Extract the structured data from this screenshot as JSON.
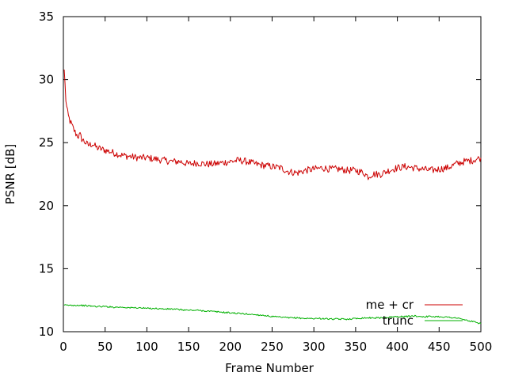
{
  "chart_data": {
    "type": "line",
    "title": "",
    "xlabel": "Frame Number",
    "ylabel": "PSNR [dB]",
    "xlim": [
      0,
      500
    ],
    "ylim": [
      10,
      35
    ],
    "xticks": [
      0,
      50,
      100,
      150,
      200,
      250,
      300,
      350,
      400,
      450,
      500
    ],
    "yticks": [
      10,
      15,
      20,
      25,
      30,
      35
    ],
    "grid": false,
    "legend_position": "bottom-right",
    "series": [
      {
        "name": "me + cr",
        "color": "#cc0000",
        "x": [
          1,
          2,
          3,
          4,
          5,
          6,
          8,
          10,
          12,
          15,
          18,
          20,
          22,
          25,
          28,
          30,
          35,
          40,
          45,
          50,
          55,
          60,
          70,
          80,
          90,
          100,
          110,
          120,
          130,
          140,
          150,
          160,
          170,
          180,
          190,
          200,
          210,
          220,
          230,
          240,
          250,
          260,
          270,
          280,
          290,
          300,
          310,
          320,
          330,
          340,
          350,
          360,
          365,
          370,
          380,
          390,
          400,
          410,
          420,
          430,
          440,
          450,
          460,
          470,
          480,
          490,
          500
        ],
        "y": [
          30.8,
          29.6,
          28.4,
          27.8,
          27.4,
          27.1,
          26.7,
          26.4,
          26.1,
          25.7,
          25.5,
          25.6,
          25.3,
          25.1,
          24.9,
          24.8,
          24.9,
          24.6,
          24.5,
          24.4,
          24.3,
          24.2,
          24.0,
          23.9,
          23.8,
          23.8,
          23.7,
          23.6,
          23.5,
          23.5,
          23.3,
          23.4,
          23.3,
          23.3,
          23.4,
          23.5,
          23.6,
          23.5,
          23.3,
          23.2,
          23.1,
          23.0,
          22.7,
          22.6,
          22.8,
          22.9,
          23.0,
          22.9,
          22.9,
          22.8,
          22.8,
          22.6,
          22.3,
          22.5,
          22.5,
          22.8,
          23.0,
          23.1,
          23.0,
          22.9,
          22.8,
          22.9,
          23.0,
          23.3,
          23.5,
          23.6,
          23.8
        ]
      },
      {
        "name": "trunc",
        "color": "#00b000",
        "x": [
          1,
          10,
          20,
          30,
          40,
          50,
          60,
          70,
          80,
          90,
          100,
          110,
          120,
          130,
          140,
          150,
          160,
          170,
          180,
          190,
          200,
          210,
          220,
          230,
          240,
          250,
          260,
          270,
          280,
          290,
          300,
          310,
          320,
          330,
          340,
          350,
          360,
          370,
          380,
          390,
          400,
          410,
          420,
          430,
          440,
          450,
          460,
          470,
          480,
          490,
          500
        ],
        "y": [
          12.1,
          12.1,
          12.1,
          12.05,
          12.0,
          12.0,
          11.95,
          11.95,
          11.9,
          11.9,
          11.85,
          11.85,
          11.8,
          11.8,
          11.75,
          11.7,
          11.7,
          11.65,
          11.6,
          11.55,
          11.5,
          11.45,
          11.4,
          11.35,
          11.3,
          11.2,
          11.15,
          11.1,
          11.1,
          11.05,
          11.05,
          11.05,
          11.0,
          11.0,
          11.0,
          11.05,
          11.1,
          11.1,
          11.1,
          11.15,
          11.2,
          11.2,
          11.25,
          11.2,
          11.2,
          11.2,
          11.15,
          11.1,
          10.95,
          10.8,
          10.65
        ]
      }
    ]
  }
}
